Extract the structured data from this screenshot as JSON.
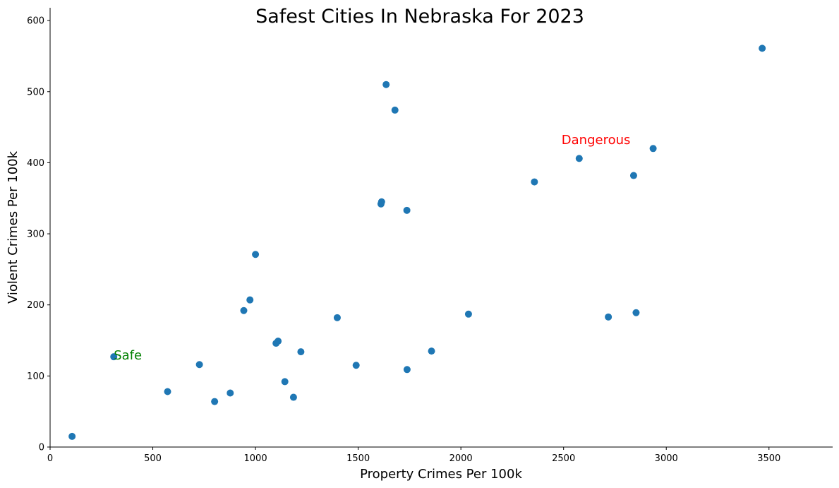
{
  "chart_data": {
    "type": "scatter",
    "title": "Safest Cities In Nebraska For 2023",
    "xlabel": "Property Crimes Per 100k",
    "ylabel": "Violent Crimes Per 100k",
    "xlim": [
      0,
      3810
    ],
    "ylim": [
      0,
      618
    ],
    "xticks": [
      0,
      500,
      1000,
      1500,
      2000,
      2500,
      3000,
      3500
    ],
    "yticks": [
      0,
      100,
      200,
      300,
      400,
      500,
      600
    ],
    "point_color": "#1f77b4",
    "grid": false,
    "points": [
      [
        107,
        15
      ],
      [
        310,
        127
      ],
      [
        572,
        78
      ],
      [
        727,
        116
      ],
      [
        801,
        64
      ],
      [
        877,
        76
      ],
      [
        943,
        192
      ],
      [
        973,
        207
      ],
      [
        1000,
        271
      ],
      [
        1100,
        146
      ],
      [
        1110,
        149
      ],
      [
        1143,
        92
      ],
      [
        1185,
        70
      ],
      [
        1221,
        134
      ],
      [
        1398,
        182
      ],
      [
        1490,
        115
      ],
      [
        1611,
        342
      ],
      [
        1614,
        345
      ],
      [
        1636,
        510
      ],
      [
        1679,
        474
      ],
      [
        1737,
        333
      ],
      [
        1738,
        109
      ],
      [
        1857,
        135
      ],
      [
        2037,
        187
      ],
      [
        2358,
        373
      ],
      [
        2576,
        406
      ],
      [
        2718,
        183
      ],
      [
        2841,
        382
      ],
      [
        2853,
        189
      ],
      [
        2936,
        420
      ],
      [
        3467,
        561
      ]
    ],
    "annotations": [
      {
        "text": "Safe",
        "x": 310,
        "y": 123,
        "color": "#008000"
      },
      {
        "text": "Dangerous",
        "x": 2490,
        "y": 426,
        "color": "#ff0000"
      }
    ]
  }
}
